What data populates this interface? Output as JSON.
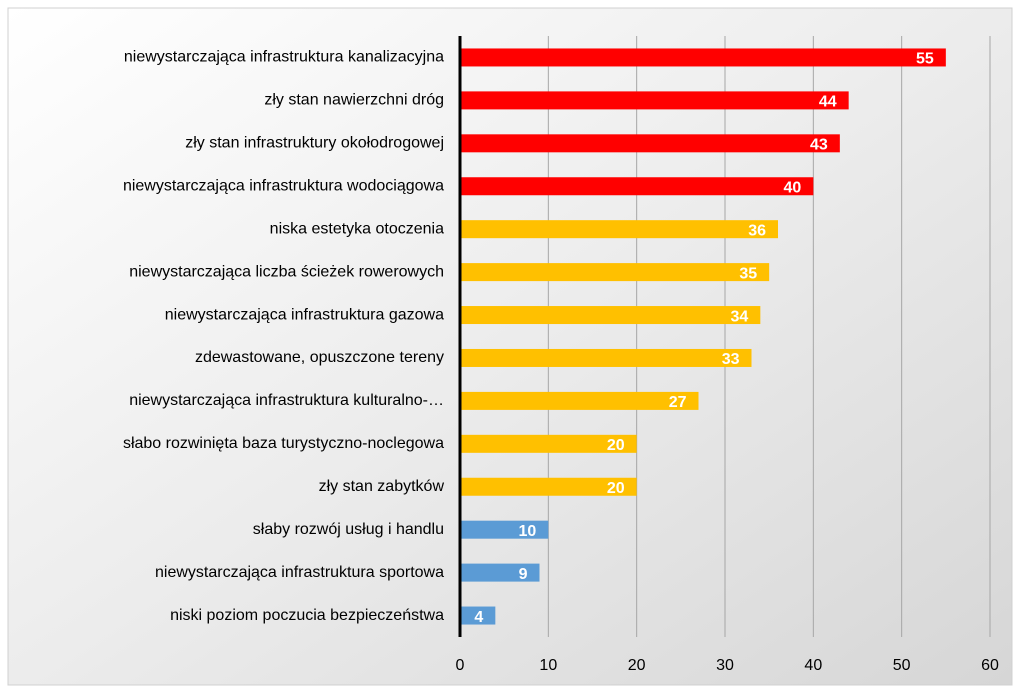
{
  "chart_data": {
    "type": "barh",
    "categories": [
      "niewystarczająca infrastruktura kanalizacyjna",
      "zły stan nawierzchni dróg",
      "zły stan infrastruktury okołodrogowej",
      "niewystarczająca infrastruktura wodociągowa",
      "niska estetyka otoczenia",
      "niewystarczająca liczba ścieżek rowerowych",
      "niewystarczająca infrastruktura gazowa",
      "zdewastowane, opuszczone tereny",
      "niewystarczająca infrastruktura kulturalno-…",
      "słabo rozwinięta baza turystyczno-noclegowa",
      "zły stan zabytków",
      "słaby rozwój usług i handlu",
      "niewystarczająca infrastruktura sportowa",
      "niski poziom poczucia bezpieczeństwa"
    ],
    "values": [
      55,
      44,
      43,
      40,
      36,
      35,
      34,
      33,
      27,
      20,
      20,
      10,
      9,
      4
    ],
    "colors": [
      "#ff0000",
      "#ff0000",
      "#ff0000",
      "#ff0000",
      "#ffc000",
      "#ffc000",
      "#ffc000",
      "#ffc000",
      "#ffc000",
      "#ffc000",
      "#ffc000",
      "#5b9bd5",
      "#5b9bd5",
      "#5b9bd5"
    ],
    "xlim": [
      0,
      60
    ],
    "xticks": [
      0,
      10,
      20,
      30,
      40,
      50,
      60
    ],
    "grid": true
  }
}
